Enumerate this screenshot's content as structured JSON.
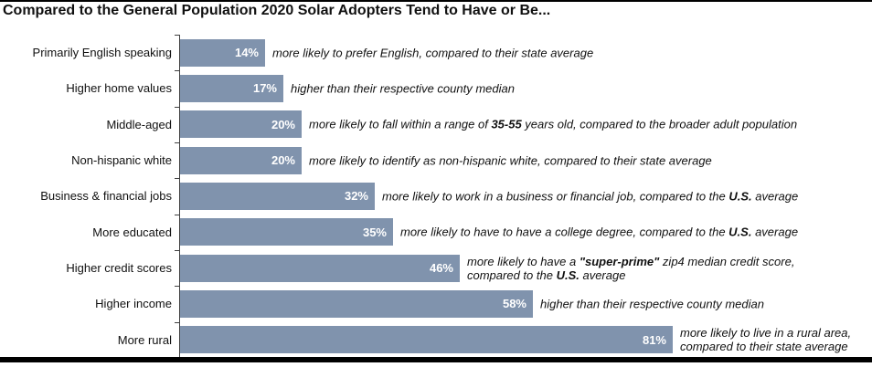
{
  "chart_data": {
    "type": "bar",
    "orientation": "horizontal",
    "title": "Compared to the General Population 2020 Solar Adopters Tend to Have or Be...",
    "bar_color": "#8093ad",
    "value_label_color": "#ffffff",
    "axis_color": "#3f3f3f",
    "value_suffix": "%",
    "xlim": [
      0,
      100
    ],
    "grid": false,
    "legend": false,
    "categories": [
      "Primarily English speaking",
      "Higher home values",
      "Middle-aged",
      "Non-hispanic white",
      "Business & financial jobs",
      "More educated",
      "Higher credit scores",
      "Higher income",
      "More rural"
    ],
    "values": [
      14,
      17,
      20,
      20,
      32,
      35,
      46,
      58,
      81
    ],
    "value_labels": [
      "14%",
      "17%",
      "20%",
      "20%",
      "32%",
      "35%",
      "46%",
      "58%",
      "81%"
    ],
    "annotations": [
      {
        "lines": [
          [
            {
              "t": "more likely to prefer English, compared to their state average",
              "b": false
            }
          ]
        ]
      },
      {
        "lines": [
          [
            {
              "t": "higher than their respective county median",
              "b": false
            }
          ]
        ]
      },
      {
        "lines": [
          [
            {
              "t": "more likely to fall within a range of ",
              "b": false
            },
            {
              "t": "35-55",
              "b": true
            },
            {
              "t": " years old, compared to the broader adult population",
              "b": false
            }
          ]
        ]
      },
      {
        "lines": [
          [
            {
              "t": "more likely to identify as non-hispanic white, compared to their state average",
              "b": false
            }
          ]
        ]
      },
      {
        "lines": [
          [
            {
              "t": "more likely to work in a business or financial job, compared to the ",
              "b": false
            },
            {
              "t": "U.S.",
              "b": true
            },
            {
              "t": " average",
              "b": false
            }
          ]
        ]
      },
      {
        "lines": [
          [
            {
              "t": "more likely to have to have a college degree, compared to the ",
              "b": false
            },
            {
              "t": "U.S.",
              "b": true
            },
            {
              "t": " average",
              "b": false
            }
          ]
        ]
      },
      {
        "lines": [
          [
            {
              "t": "more likely to have a ",
              "b": false
            },
            {
              "t": "\"super-prime\"",
              "b": true
            },
            {
              "t": " zip4 median credit score,",
              "b": false
            }
          ],
          [
            {
              "t": "compared to the ",
              "b": false
            },
            {
              "t": "U.S.",
              "b": true
            },
            {
              "t": " average",
              "b": false
            }
          ]
        ]
      },
      {
        "lines": [
          [
            {
              "t": "higher than their respective county median",
              "b": false
            }
          ]
        ]
      },
      {
        "lines": [
          [
            {
              "t": "more likely to live in a rural area,",
              "b": false
            }
          ],
          [
            {
              "t": "compared to their state average",
              "b": false
            }
          ]
        ]
      }
    ]
  }
}
